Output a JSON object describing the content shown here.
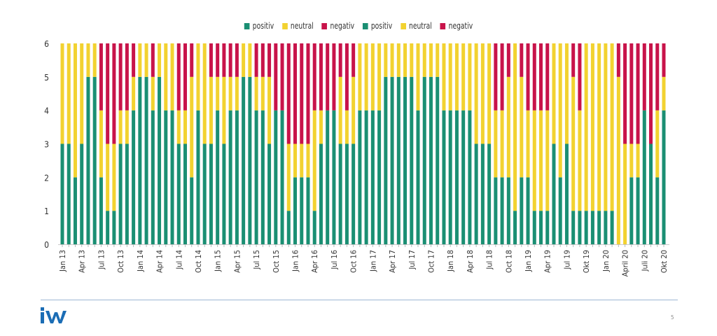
{
  "chart_data": {
    "type": "bar",
    "stacked": true,
    "title": "",
    "xlabel": "",
    "ylabel": "",
    "ylim": [
      0,
      6
    ],
    "yticks": [
      0,
      1,
      2,
      3,
      4,
      5,
      6
    ],
    "grid": false,
    "legend_position": "top-center",
    "legend": [
      {
        "name": "positiv",
        "color": "#1a8f73"
      },
      {
        "name": "neutral",
        "color": "#f2d230"
      },
      {
        "name": "negativ",
        "color": "#c8134a"
      },
      {
        "name": "positiv",
        "color": "#1a8f73"
      },
      {
        "name": "neutral",
        "color": "#f2d230"
      },
      {
        "name": "negativ",
        "color": "#c8134a"
      }
    ],
    "tick_labels": [
      "Jan 13",
      "Apr 13",
      "Jul 13",
      "Oct 13",
      "Jan 14",
      "Apr 14",
      "Jul 14",
      "Oct 14",
      "Jan 15",
      "Apr 15",
      "Jul 15",
      "Oct 15",
      "Jan 16",
      "Apr 16",
      "Jul 16",
      "Oct 16",
      "Jan 17",
      "Apr 17",
      "Jul 17",
      "Oct 17",
      "Jan 18",
      "Apr 18",
      "Jul 18",
      "Oct 18",
      "Jan 19",
      "Apr 19",
      "Jul 19",
      "Okt 19",
      "Jan 20",
      "April 20",
      "Juli 20",
      "Okt 20"
    ],
    "tick_every": 3,
    "bar_count": 94,
    "series": [
      {
        "name": "positiv",
        "color": "#1a8f73",
        "values": [
          3,
          3,
          2,
          3,
          5,
          5,
          2,
          1,
          1,
          3,
          3,
          4,
          5,
          5,
          4,
          5,
          4,
          4,
          3,
          3,
          2,
          4,
          3,
          3,
          4,
          3,
          4,
          4,
          5,
          5,
          4,
          4,
          3,
          4,
          4,
          1,
          2,
          2,
          2,
          1,
          3,
          4,
          4,
          3,
          3,
          3,
          4,
          4,
          4,
          4,
          5,
          5,
          5,
          5,
          5,
          4,
          5,
          5,
          5,
          4,
          4,
          4,
          4,
          4,
          3,
          3,
          3,
          2,
          2,
          2,
          1,
          2,
          2,
          1,
          1,
          1,
          3,
          2,
          3,
          1,
          1,
          1,
          1,
          1,
          1,
          1,
          0,
          0,
          2,
          2,
          4,
          3,
          2,
          4
        ]
      },
      {
        "name": "neutral",
        "color": "#f2d230",
        "values": [
          3,
          3,
          4,
          3,
          1,
          1,
          2,
          2,
          2,
          1,
          1,
          1,
          1,
          1,
          1,
          1,
          2,
          2,
          1,
          1,
          3,
          2,
          3,
          2,
          1,
          2,
          1,
          1,
          1,
          1,
          1,
          1,
          2,
          0,
          0,
          2,
          1,
          1,
          1,
          3,
          1,
          0,
          0,
          2,
          1,
          2,
          2,
          2,
          2,
          2,
          1,
          1,
          1,
          1,
          1,
          2,
          1,
          1,
          1,
          2,
          2,
          2,
          2,
          2,
          3,
          3,
          3,
          2,
          2,
          3,
          5,
          3,
          2,
          3,
          3,
          3,
          3,
          4,
          3,
          4,
          3,
          5,
          5,
          5,
          5,
          5,
          5,
          3,
          1,
          1,
          0,
          0,
          2,
          1
        ]
      },
      {
        "name": "negativ",
        "color": "#c8134a",
        "values": [
          0,
          0,
          0,
          0,
          0,
          0,
          2,
          3,
          3,
          2,
          2,
          1,
          0,
          0,
          1,
          0,
          0,
          0,
          2,
          2,
          1,
          0,
          0,
          1,
          1,
          1,
          1,
          1,
          0,
          0,
          1,
          1,
          1,
          2,
          2,
          3,
          3,
          3,
          3,
          2,
          2,
          2,
          2,
          1,
          2,
          1,
          0,
          0,
          0,
          0,
          0,
          0,
          0,
          0,
          0,
          0,
          0,
          0,
          0,
          0,
          0,
          0,
          0,
          0,
          0,
          0,
          0,
          2,
          2,
          1,
          0,
          1,
          2,
          2,
          2,
          2,
          0,
          0,
          0,
          1,
          2,
          0,
          0,
          0,
          0,
          0,
          1,
          3,
          3,
          3,
          2,
          3,
          2,
          1
        ]
      }
    ]
  },
  "footer": {
    "logo_text": "iW",
    "page_number": "5"
  }
}
